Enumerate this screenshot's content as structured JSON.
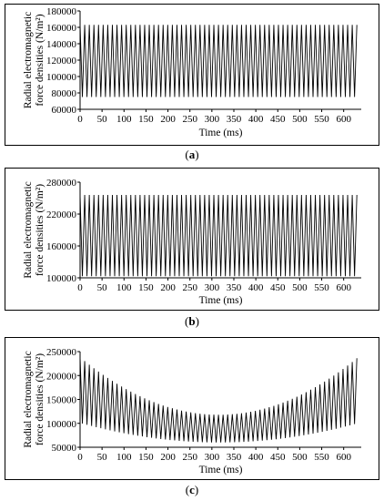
{
  "chart_data": [
    {
      "type": "line",
      "caption_prefix": "(",
      "caption_letter": "a",
      "caption_suffix": ")",
      "ylabel_line1": "Radial electromagnetic",
      "ylabel_line2": "force densities  (N/m²)",
      "xlabel": "Time  (ms)",
      "xlim": [
        0,
        640
      ],
      "ylim": [
        60000,
        180000
      ],
      "yticks": [
        60000,
        80000,
        100000,
        120000,
        140000,
        160000,
        180000
      ],
      "xticks": [
        0,
        50,
        100,
        150,
        200,
        250,
        300,
        350,
        400,
        450,
        500,
        550,
        600
      ],
      "series": [
        {
          "period_ms": 10.5,
          "x_end": 635,
          "peak_start": 163000,
          "peak_mid": 163000,
          "peak_end": 163000,
          "trough_start": 75000,
          "trough_mid": 75000,
          "trough_end": 75000
        }
      ]
    },
    {
      "type": "line",
      "caption_prefix": "(",
      "caption_letter": "b",
      "caption_suffix": ")",
      "ylabel_line1": "Radial electromagnetic",
      "ylabel_line2": "force densities  (N/m²)",
      "xlabel": "Time  (ms)",
      "xlim": [
        0,
        640
      ],
      "ylim": [
        100000,
        280000
      ],
      "yticks": [
        100000,
        160000,
        220000,
        280000
      ],
      "xticks": [
        0,
        50,
        100,
        150,
        200,
        250,
        300,
        350,
        400,
        450,
        500,
        550,
        600
      ],
      "series": [
        {
          "period_ms": 10.5,
          "x_end": 635,
          "peak_start": 256000,
          "peak_mid": 256000,
          "peak_end": 256000,
          "trough_start": 103000,
          "trough_mid": 103000,
          "trough_end": 103000
        }
      ]
    },
    {
      "type": "line",
      "caption_prefix": "(",
      "caption_letter": "c",
      "caption_suffix": ")",
      "ylabel_line1": "Radial electromagnetic",
      "ylabel_line2": "force densities  (N/m²)",
      "xlabel": "Time  (ms)",
      "xlim": [
        0,
        640
      ],
      "ylim": [
        50000,
        250000
      ],
      "yticks": [
        50000,
        100000,
        150000,
        200000,
        250000
      ],
      "xticks": [
        0,
        50,
        100,
        150,
        200,
        250,
        300,
        350,
        400,
        450,
        500,
        550,
        600
      ],
      "series": [
        {
          "period_ms": 10.5,
          "x_end": 635,
          "peak_start": 238000,
          "peak_mid": 118000,
          "peak_end": 240000,
          "trough_start": 101000,
          "trough_mid": 60000,
          "trough_end": 101000
        }
      ]
    }
  ]
}
